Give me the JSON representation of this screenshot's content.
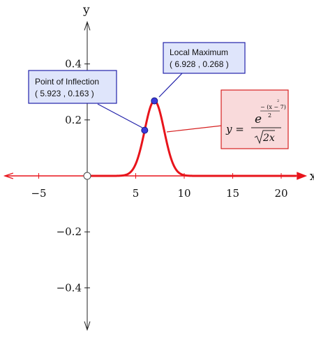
{
  "chart_data": {
    "type": "line",
    "xlabel": "x",
    "ylabel": "y",
    "xlim": [
      -8.5,
      22.5
    ],
    "ylim": [
      -0.55,
      0.55
    ],
    "x_ticks": [
      -5,
      5,
      10,
      15,
      20
    ],
    "x_tick_labels": [
      "−5",
      "5",
      "10",
      "15",
      "20"
    ],
    "y_ticks": [
      0.4,
      0.2,
      -0.2,
      -0.4
    ],
    "y_tick_labels": [
      "0.4",
      "0.2",
      "−0.2",
      "−0.4"
    ],
    "grid": false,
    "series": [
      {
        "color": "#e8141b",
        "domain": [
          0,
          22.5
        ],
        "expression": "e^(-(x-7)^2/2)/sqrt(2x)"
      }
    ],
    "points": [
      {
        "x": 5.923,
        "y": 0.163,
        "label": "Point of Inflection",
        "coords": "( 5.923 , 0.163 )"
      },
      {
        "x": 6.928,
        "y": 0.268,
        "label": "Local Maximum",
        "coords": "( 6.928 , 0.268 )"
      }
    ],
    "origin_marker": "open-circle",
    "formula": {
      "lhs": "y =",
      "numerator_base": "e",
      "exponent_numerator": "− (x − 7)",
      "exponent_power": "2",
      "exponent_denominator": "2",
      "denominator": "2x"
    }
  },
  "colors": {
    "curve": "#e8141b",
    "x_axis": "#e8141b",
    "y_axis": "#222222",
    "point_fill": "#3b3bdc",
    "blue_box_bg": "#dfe5fb",
    "blue_box_border": "#2222aa",
    "red_box_bg": "#f9dadb",
    "red_box_border": "#d62020"
  }
}
